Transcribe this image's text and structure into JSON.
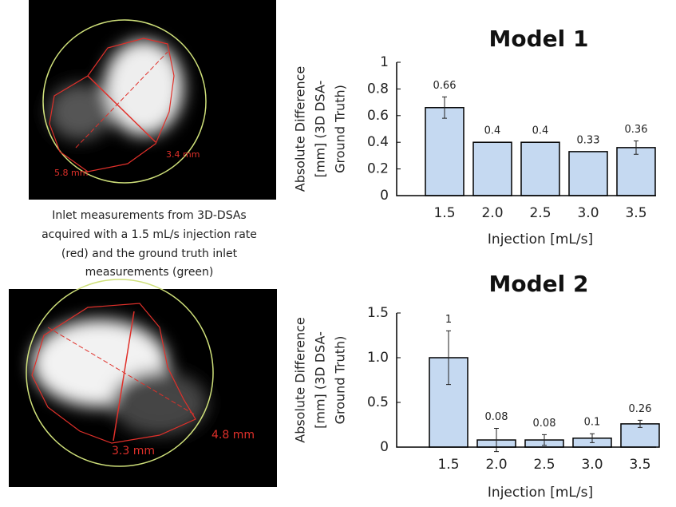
{
  "figure": {
    "caption": [
      "Inlet measurements from 3D-DSAs",
      "acquired with a 1.5 mL/s injection rate",
      "(red) and the ground truth inlet",
      "measurements (green)"
    ],
    "images": [
      {
        "labels": [
          "5.8 mm",
          "3.4 mm"
        ]
      },
      {
        "labels": [
          "3.3 mm",
          "4.8 mm"
        ]
      }
    ]
  },
  "chart_data": [
    {
      "type": "bar",
      "title": "Model 1",
      "ylabel": [
        "Absolute Difference",
        "[mm]  (3D DSA-",
        "Ground Truth)"
      ],
      "xlabel": "Injection [mL/s]",
      "categories": [
        "1.5",
        "2.0",
        "2.5",
        "3.0",
        "3.5"
      ],
      "values": [
        0.66,
        0.4,
        0.4,
        0.33,
        0.36
      ],
      "errors": [
        0.08,
        null,
        null,
        null,
        0.05
      ],
      "color": "#c5d9f1",
      "ylim": [
        0,
        1
      ],
      "yticks": [
        0,
        0.2,
        0.4,
        0.6,
        0.8,
        1
      ]
    },
    {
      "type": "bar",
      "title": "Model 2",
      "ylabel": [
        "Absolute Difference",
        "[mm]  (3D DSA-",
        "Ground Truth)"
      ],
      "xlabel": "Injection [mL/s]",
      "categories": [
        "1.5",
        "2.0",
        "2.5",
        "3.0",
        "3.5"
      ],
      "values": [
        1,
        0.08,
        0.08,
        0.1,
        0.26
      ],
      "errors": [
        0.3,
        0.13,
        0.06,
        0.05,
        0.04
      ],
      "color": "#c5d9f1",
      "ylim": [
        0,
        1.5
      ],
      "yticks": [
        0,
        0.5,
        {
          "value": 1,
          "label": "1.0"
        },
        1.5
      ]
    }
  ]
}
